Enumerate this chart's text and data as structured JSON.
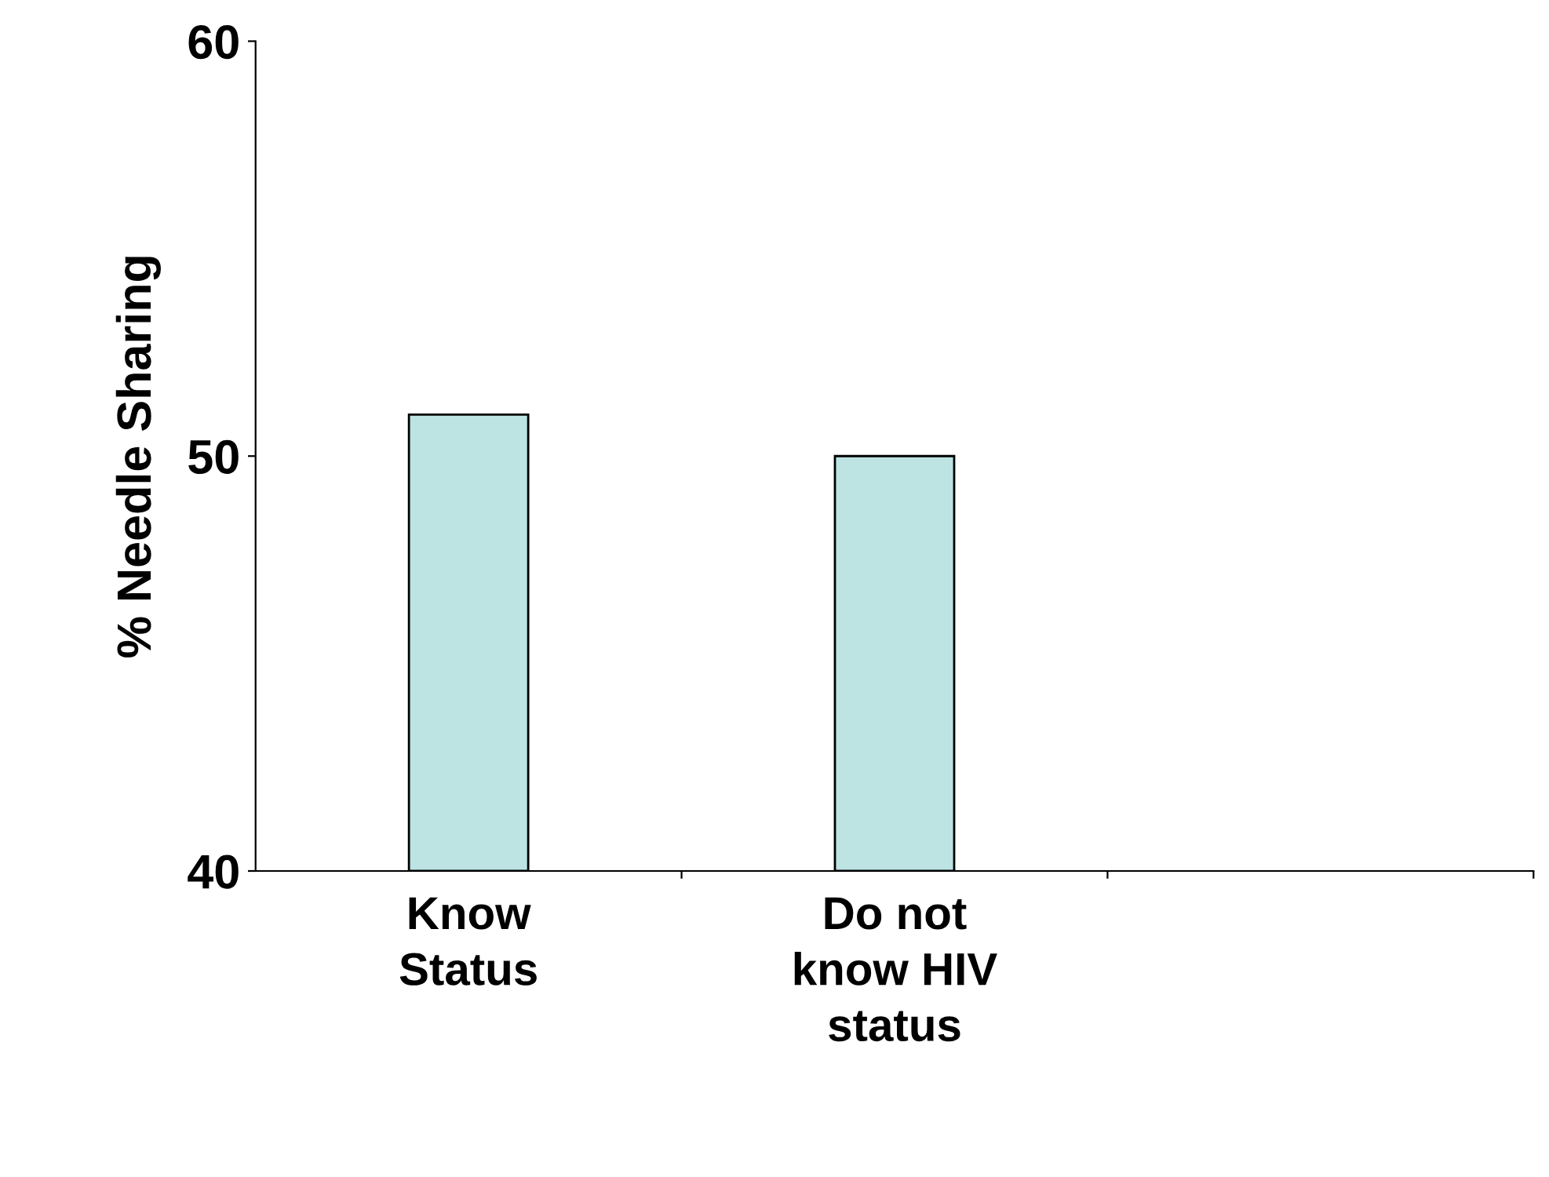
{
  "chart_data": {
    "type": "bar",
    "ylabel": "% Needle Sharing",
    "categories": [
      "Know Status",
      "Do not know HIV status",
      null
    ],
    "values": [
      51,
      50,
      null
    ],
    "color": "#bde3e3",
    "ylim": [
      40,
      60
    ],
    "yticks": [
      40,
      50,
      60
    ],
    "grid": false,
    "legend": false
  }
}
